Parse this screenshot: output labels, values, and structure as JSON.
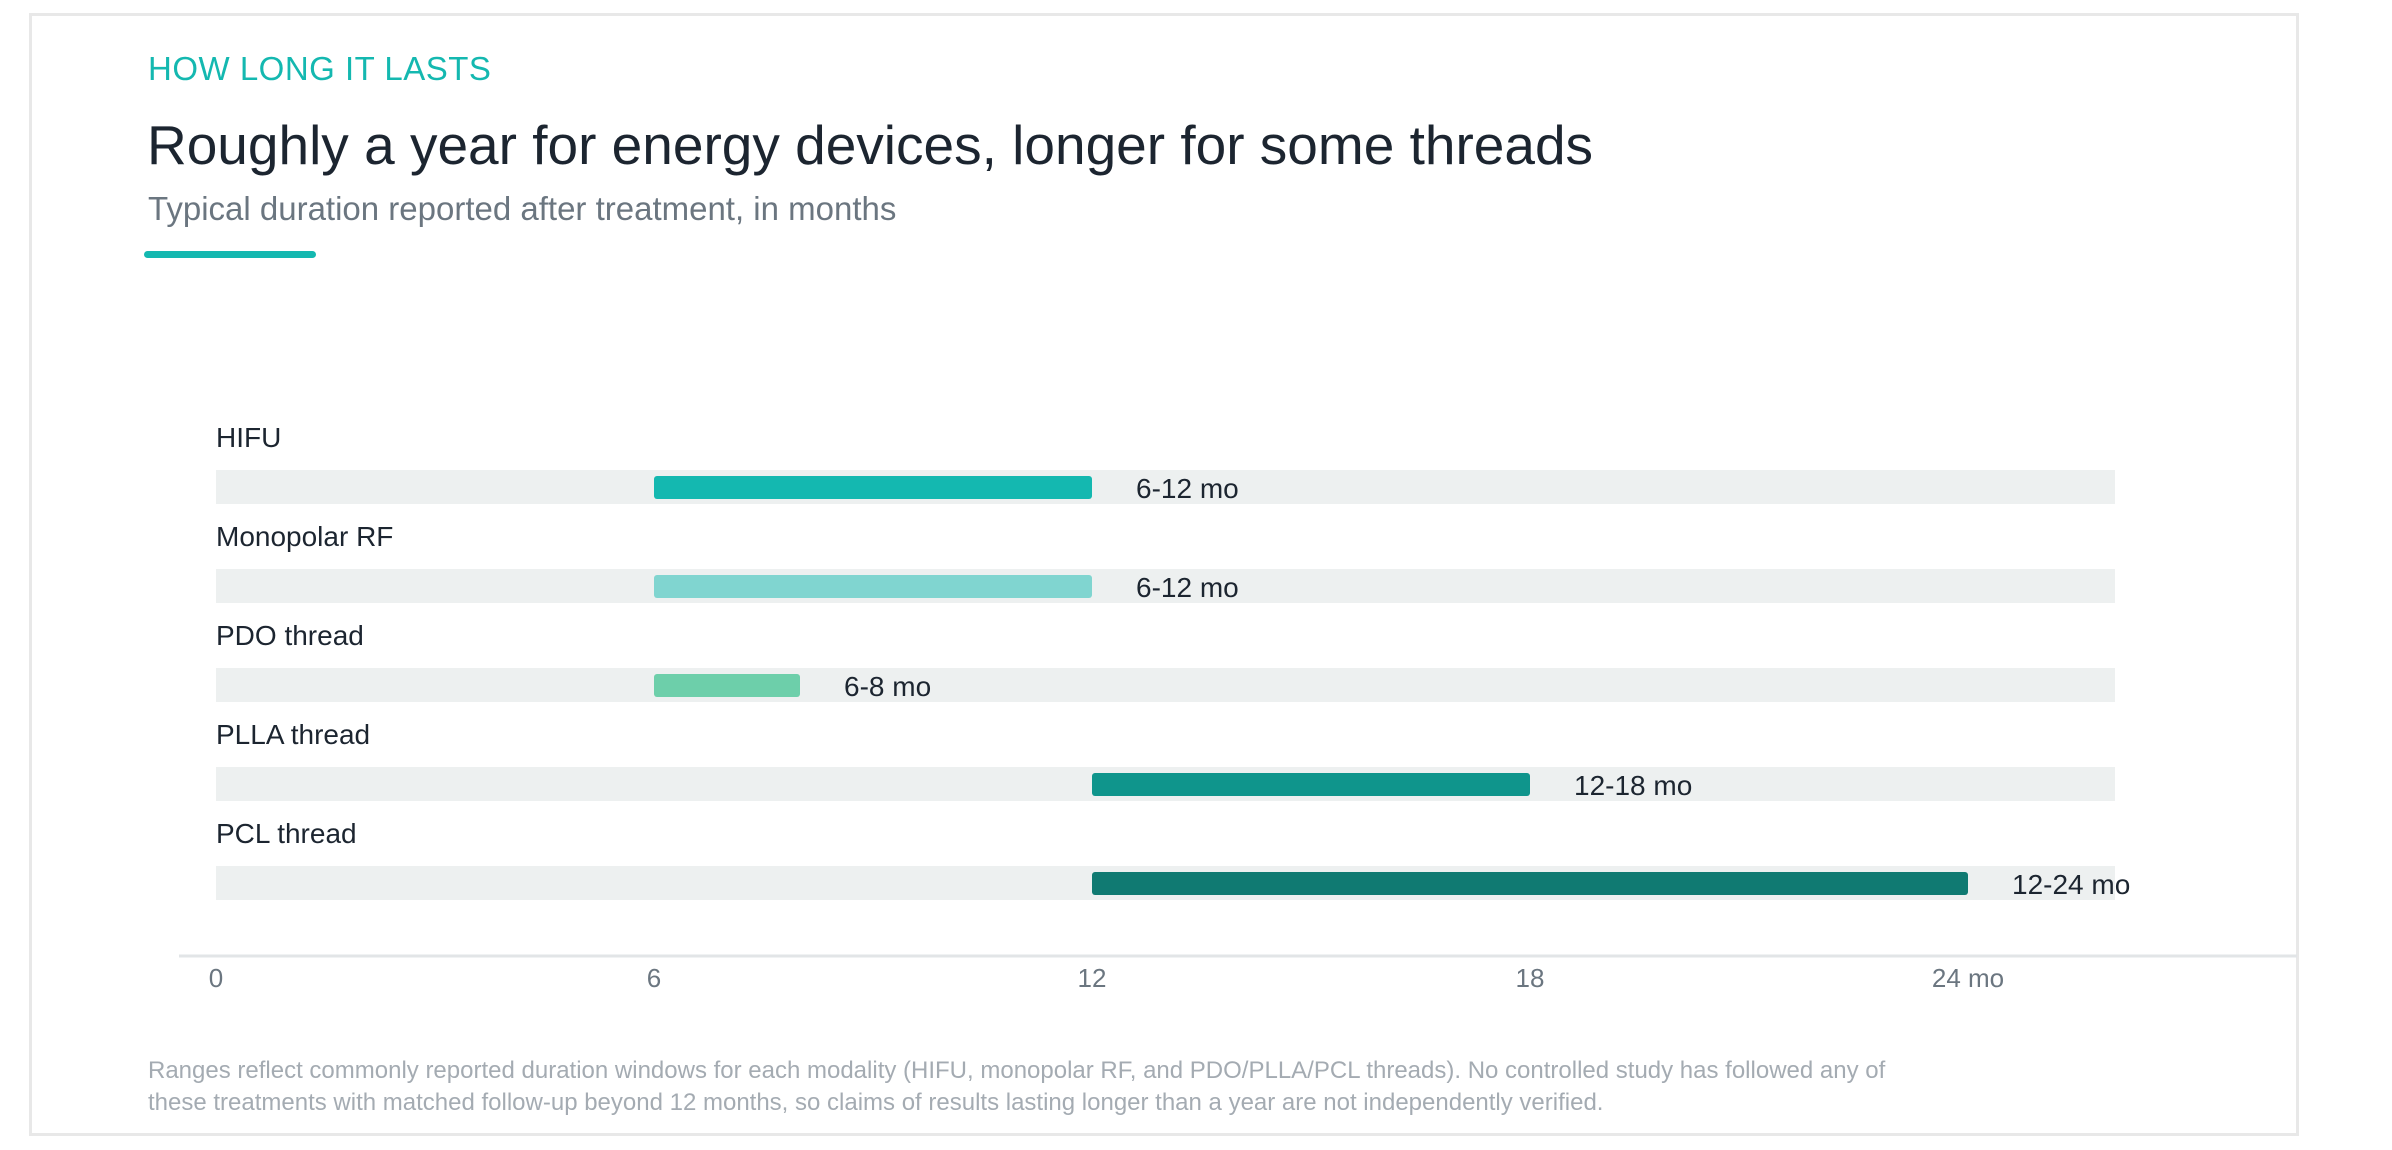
{
  "header": {
    "eyebrow": "HOW LONG IT LASTS",
    "title": "Roughly a year for energy devices, longer for some threads",
    "subtitle": "Typical duration reported after treatment, in months"
  },
  "chart_data": {
    "type": "bar",
    "orientation": "horizontal-range",
    "categories": [
      "HIFU",
      "Monopolar RF",
      "PDO thread",
      "PLLA thread",
      "PCL thread"
    ],
    "ranges": [
      {
        "category": "HIFU",
        "start": 6,
        "end": 12,
        "label": "6-12 mo",
        "color": "#14b8b0"
      },
      {
        "category": "Monopolar RF",
        "start": 6,
        "end": 12,
        "label": "6-12 mo",
        "color": "#80d5d0"
      },
      {
        "category": "PDO thread",
        "start": 6,
        "end": 8,
        "label": "6-8 mo",
        "color": "#6dcfaa"
      },
      {
        "category": "PLLA thread",
        "start": 12,
        "end": 18,
        "label": "12-18 mo",
        "color": "#0f958c"
      },
      {
        "category": "PCL thread",
        "start": 12,
        "end": 24,
        "label": "12-24 mo",
        "color": "#107a72"
      }
    ],
    "xticks": [
      {
        "value": 0,
        "label": "0"
      },
      {
        "value": 6,
        "label": "6"
      },
      {
        "value": 12,
        "label": "12"
      },
      {
        "value": 18,
        "label": "18"
      },
      {
        "value": 24,
        "label": "24 mo"
      }
    ],
    "xlim": [
      0,
      26
    ],
    "grid": false,
    "track_color": "#edf0f0",
    "axis_color": "#e2e5e7"
  },
  "footnote": "Ranges reflect commonly reported duration windows for each modality (HIFU, monopolar RF, and PDO/PLLA/PCL threads). No controlled study has followed any of these treatments with matched follow-up beyond 12 months, so claims of results lasting longer than a year are not independently verified."
}
